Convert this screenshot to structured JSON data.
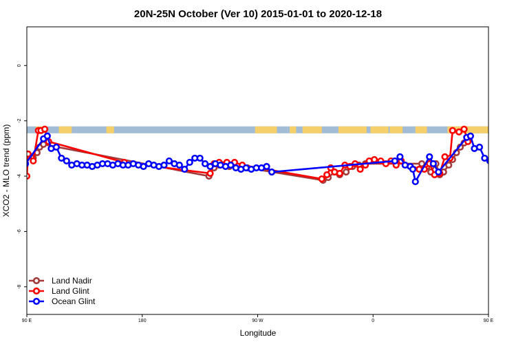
{
  "chart_data": {
    "type": "line",
    "title": "20N-25N October (Ver 10)   2015-01-01 to 2020-12-18",
    "xlabel": "Longitude",
    "ylabel": "XCO2 - MLO trend (ppm)",
    "xlim": [
      90,
      450
    ],
    "ylim": [
      -9,
      1.4
    ],
    "x_ticks": [
      {
        "value": 90,
        "label": "90 E"
      },
      {
        "value": 180,
        "label": "180"
      },
      {
        "value": 270,
        "label": "90 W"
      },
      {
        "value": 360,
        "label": "0"
      },
      {
        "value": 450,
        "label": "90 E"
      },
      {
        "value": 540,
        "label": "180"
      }
    ],
    "y_ticks": [
      {
        "value": 0,
        "label": "0"
      },
      {
        "value": -2,
        "label": "-2"
      },
      {
        "value": -4,
        "label": "-4"
      },
      {
        "value": -6,
        "label": "-6"
      },
      {
        "value": -8,
        "label": "-8"
      }
    ],
    "map_strip": {
      "y_top": -2.2,
      "y_bottom": -2.45,
      "ocean_color": "#a3bcd6",
      "land_color": "#f5d06a"
    },
    "legend_position": "bottom-left",
    "series": [
      {
        "name": "Land Nadir",
        "color": "#a33a3a",
        "points": [
          [
            95,
            -3.35
          ],
          [
            98,
            -3.15
          ],
          [
            100,
            -2.95
          ],
          [
            103,
            -2.85
          ],
          [
            232,
            -4.0
          ],
          [
            236,
            -3.7
          ],
          [
            240,
            -3.6
          ],
          [
            248,
            -3.65
          ],
          [
            258,
            -3.65
          ],
          [
            262,
            -3.7
          ],
          [
            321,
            -4.15
          ],
          [
            325,
            -4.05
          ],
          [
            330,
            -3.85
          ],
          [
            334,
            -3.95
          ],
          [
            339,
            -3.85
          ],
          [
            344,
            -3.65
          ],
          [
            349,
            -3.6
          ],
          [
            354,
            -3.55
          ],
          [
            398,
            -3.55
          ],
          [
            402,
            -3.65
          ],
          [
            405,
            -3.85
          ],
          [
            409,
            -3.55
          ],
          [
            412,
            -3.95
          ],
          [
            415,
            -3.85
          ],
          [
            419,
            -3.6
          ],
          [
            422,
            -3.4
          ],
          [
            425,
            -3.15
          ],
          [
            428,
            -2.95
          ],
          [
            431,
            -2.8
          ]
        ]
      },
      {
        "name": "Land Glint",
        "color": "#ff0000",
        "points": [
          [
            87,
            -3.85
          ],
          [
            90,
            -4.0
          ],
          [
            91,
            -3.2
          ],
          [
            95,
            -3.45
          ],
          [
            99,
            -2.35
          ],
          [
            101,
            -2.35
          ],
          [
            104,
            -2.3
          ],
          [
            107,
            -2.75
          ],
          [
            166,
            -3.5
          ],
          [
            233,
            -3.9
          ],
          [
            236,
            -3.55
          ],
          [
            240,
            -3.5
          ],
          [
            246,
            -3.5
          ],
          [
            252,
            -3.5
          ],
          [
            258,
            -3.6
          ],
          [
            320,
            -4.1
          ],
          [
            324,
            -3.95
          ],
          [
            327,
            -3.7
          ],
          [
            330,
            -3.85
          ],
          [
            334,
            -3.9
          ],
          [
            338,
            -3.6
          ],
          [
            342,
            -3.65
          ],
          [
            346,
            -3.55
          ],
          [
            350,
            -3.75
          ],
          [
            354,
            -3.6
          ],
          [
            357,
            -3.45
          ],
          [
            361,
            -3.4
          ],
          [
            366,
            -3.45
          ],
          [
            370,
            -3.55
          ],
          [
            374,
            -3.45
          ],
          [
            378,
            -3.6
          ],
          [
            382,
            -3.45
          ],
          [
            396,
            -3.75
          ],
          [
            400,
            -3.75
          ],
          [
            404,
            -3.55
          ],
          [
            408,
            -3.95
          ],
          [
            412,
            -3.9
          ],
          [
            416,
            -3.3
          ],
          [
            420,
            -3.35
          ],
          [
            422,
            -2.35
          ],
          [
            427,
            -2.4
          ],
          [
            431,
            -2.3
          ],
          [
            434,
            -2.75
          ]
        ]
      },
      {
        "name": "Ocean Glint",
        "color": "#0000ff",
        "points": [
          [
            89,
            -3.55
          ],
          [
            103,
            -2.65
          ],
          [
            106,
            -2.55
          ],
          [
            109,
            -3.0
          ],
          [
            113,
            -2.95
          ],
          [
            117,
            -3.35
          ],
          [
            121,
            -3.45
          ],
          [
            125,
            -3.6
          ],
          [
            129,
            -3.55
          ],
          [
            133,
            -3.6
          ],
          [
            137,
            -3.6
          ],
          [
            141,
            -3.65
          ],
          [
            145,
            -3.6
          ],
          [
            149,
            -3.55
          ],
          [
            153,
            -3.55
          ],
          [
            157,
            -3.6
          ],
          [
            161,
            -3.55
          ],
          [
            165,
            -3.6
          ],
          [
            169,
            -3.6
          ],
          [
            173,
            -3.55
          ],
          [
            177,
            -3.6
          ],
          [
            181,
            -3.65
          ],
          [
            185,
            -3.55
          ],
          [
            189,
            -3.6
          ],
          [
            193,
            -3.65
          ],
          [
            197,
            -3.6
          ],
          [
            201,
            -3.45
          ],
          [
            205,
            -3.55
          ],
          [
            209,
            -3.6
          ],
          [
            213,
            -3.75
          ],
          [
            217,
            -3.5
          ],
          [
            221,
            -3.35
          ],
          [
            225,
            -3.35
          ],
          [
            229,
            -3.55
          ],
          [
            233,
            -3.65
          ],
          [
            237,
            -3.55
          ],
          [
            241,
            -3.6
          ],
          [
            245,
            -3.65
          ],
          [
            249,
            -3.6
          ],
          [
            253,
            -3.7
          ],
          [
            257,
            -3.75
          ],
          [
            261,
            -3.7
          ],
          [
            265,
            -3.75
          ],
          [
            269,
            -3.7
          ],
          [
            273,
            -3.7
          ],
          [
            277,
            -3.65
          ],
          [
            281,
            -3.85
          ],
          [
            377,
            -3.45
          ],
          [
            381,
            -3.3
          ],
          [
            385,
            -3.6
          ],
          [
            389,
            -3.65
          ],
          [
            391,
            -3.75
          ],
          [
            393,
            -4.2
          ],
          [
            404,
            -3.3
          ],
          [
            407,
            -3.55
          ],
          [
            411,
            -3.85
          ],
          [
            433,
            -2.6
          ],
          [
            436,
            -2.55
          ],
          [
            439,
            -3.0
          ],
          [
            443,
            -2.95
          ],
          [
            447,
            -3.35
          ],
          [
            451,
            -3.45
          ],
          [
            455,
            -3.55
          ],
          [
            459,
            -3.6
          ],
          [
            463,
            -3.55
          ],
          [
            467,
            -3.55
          ],
          [
            471,
            -3.6
          ],
          [
            475,
            -3.55
          ],
          [
            479,
            -3.55
          ],
          [
            483,
            -3.6
          ],
          [
            487,
            -3.55
          ],
          [
            491,
            -3.6
          ]
        ]
      }
    ]
  }
}
